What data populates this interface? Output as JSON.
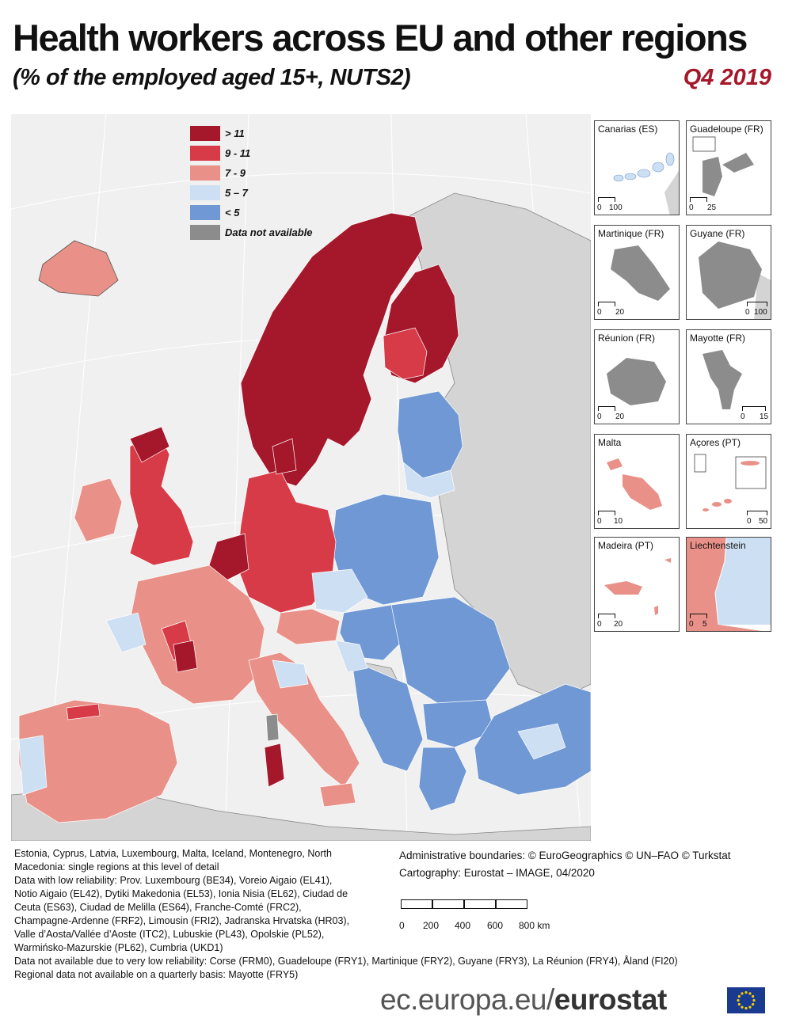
{
  "header": {
    "title": "Health workers across EU and other regions",
    "subtitle": "(% of the employed aged 15+, NUTS2)",
    "period": "Q4 2019"
  },
  "legend": {
    "items": [
      {
        "label": "> 11",
        "color": "#a5182b"
      },
      {
        "label": "9 - 11",
        "color": "#d73b48"
      },
      {
        "label": "7 - 9",
        "color": "#e99188"
      },
      {
        "label": "5 – 7",
        "color": "#cddff2"
      },
      {
        "label": "< 5",
        "color": "#6f98d4"
      },
      {
        "label": "Data not available",
        "color": "#8c8c8c"
      }
    ]
  },
  "insets": [
    {
      "name": "Canarias (ES)",
      "scale_left": "0",
      "scale_right": "100"
    },
    {
      "name": "Guadeloupe (FR)",
      "scale_left": "0",
      "scale_right": "25"
    },
    {
      "name": "Martinique (FR)",
      "scale_left": "0",
      "scale_right": "20"
    },
    {
      "name": "Guyane (FR)",
      "scale_left": "0",
      "scale_right": "100"
    },
    {
      "name": "Réunion (FR)",
      "scale_left": "0",
      "scale_right": "20"
    },
    {
      "name": "Mayotte (FR)",
      "scale_left": "0",
      "scale_right": "15"
    },
    {
      "name": "Malta",
      "scale_left": "0",
      "scale_right": "10"
    },
    {
      "name": "Açores (PT)",
      "scale_left": "0",
      "scale_right": "50"
    },
    {
      "name": "Madeira (PT)",
      "scale_left": "0",
      "scale_right": "20"
    },
    {
      "name": "Liechtenstein",
      "scale_left": "0",
      "scale_right": "5"
    }
  ],
  "notes": {
    "lines": [
      "Estonia, Cyprus, Latvia, Luxembourg, Malta, Iceland, Montenegro, North",
      "Macedonia: single regions at this level of detail",
      "Data with low reliability: Prov. Luxembourg (BE34), Voreio Aigaio (EL41),",
      "Notio Aigaio (EL42), Dytiki Makedonia (EL53), Ionia Nisia (EL62), Ciudad de",
      "Ceuta (ES63), Ciudad de Melilla (ES64), Franche-Comté (FRC2),",
      "Champagne-Ardenne (FRF2), Limousin (FRI2), Jadranska Hrvatska (HR03),",
      "Valle d’Aosta/Vallée d’Aoste (ITC2), Lubuskie (PL43), Opolskie (PL52),",
      "Warmińsko-Mazurskie (PL62), Cumbria (UKD1)"
    ],
    "wide_lines": [
      "Data not available due to very low reliability: Corse (FRM0), Guadeloupe (FRY1), Martinique (FRY2), Guyane (FRY3), La Réunion (FRY4), Åland (FI20)",
      "Regional data not available on a quarterly basis: Mayotte (FRY5)"
    ]
  },
  "credits": {
    "boundaries": "Administrative boundaries: © EuroGeographics © UN–FAO © Turkstat",
    "cartography": "Cartography: Eurostat – IMAGE, 04/2020"
  },
  "scale": {
    "ticks": [
      "0",
      "200",
      "400",
      "600",
      "800 km"
    ]
  },
  "footer": {
    "url_prefix": "ec.europa.eu/",
    "url_brand": "eurostat"
  }
}
